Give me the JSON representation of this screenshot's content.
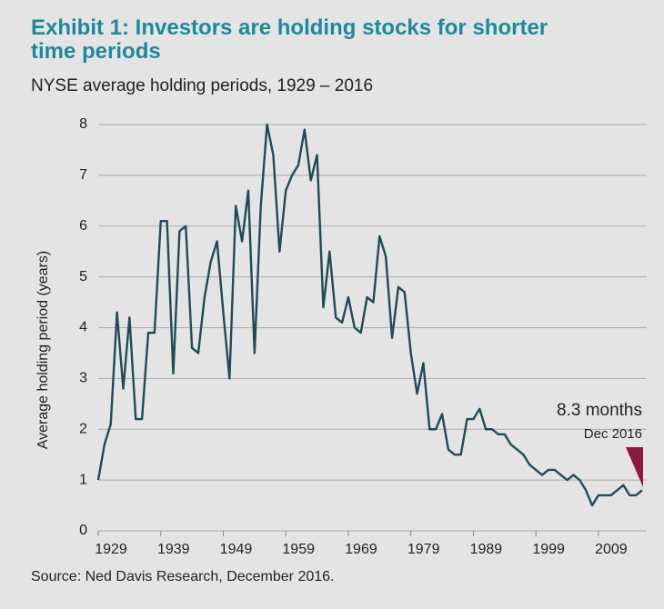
{
  "chart_data": {
    "type": "line",
    "title": "Exhibit 1: Investors are holding stocks for shorter time periods",
    "subtitle": "NYSE average holding periods, 1929 – 2016",
    "y_label": "Average holding period (years)",
    "source": "Source: Ned Davis Research, December 2016.",
    "annotation": "8.3 months",
    "annotation_date": "Dec 2016",
    "color": "#1f4b57",
    "x": [
      1929,
      1930,
      1931,
      1932,
      1933,
      1934,
      1935,
      1936,
      1937,
      1938,
      1939,
      1940,
      1941,
      1942,
      1943,
      1944,
      1945,
      1946,
      1947,
      1948,
      1949,
      1950,
      1951,
      1952,
      1953,
      1954,
      1955,
      1956,
      1957,
      1958,
      1959,
      1960,
      1961,
      1962,
      1963,
      1964,
      1965,
      1966,
      1967,
      1968,
      1969,
      1970,
      1971,
      1972,
      1973,
      1974,
      1975,
      1976,
      1977,
      1978,
      1979,
      1980,
      1981,
      1982,
      1983,
      1984,
      1985,
      1986,
      1987,
      1988,
      1989,
      1990,
      1991,
      1992,
      1993,
      1994,
      1995,
      1996,
      1997,
      1998,
      1999,
      2000,
      2001,
      2002,
      2003,
      2004,
      2005,
      2006,
      2007,
      2008,
      2009,
      2010,
      2011,
      2012,
      2013,
      2014,
      2015,
      2016
    ],
    "values": [
      1.0,
      1.7,
      2.1,
      4.3,
      2.8,
      4.2,
      2.2,
      2.2,
      3.9,
      3.9,
      6.1,
      6.1,
      3.1,
      5.9,
      6.0,
      3.6,
      3.5,
      4.6,
      5.3,
      5.7,
      4.3,
      3.0,
      6.4,
      5.7,
      6.7,
      3.5,
      6.4,
      8.0,
      7.4,
      5.5,
      6.7,
      7.0,
      7.2,
      7.9,
      6.9,
      7.4,
      4.4,
      5.5,
      4.2,
      4.1,
      4.6,
      4.0,
      3.9,
      4.6,
      4.5,
      5.8,
      5.4,
      3.8,
      4.8,
      4.7,
      3.5,
      2.7,
      3.3,
      2.0,
      2.0,
      2.3,
      1.6,
      1.5,
      1.5,
      2.2,
      2.2,
      2.4,
      2.0,
      2.0,
      1.9,
      1.9,
      1.7,
      1.6,
      1.5,
      1.3,
      1.2,
      1.1,
      1.2,
      1.2,
      1.1,
      1.0,
      1.1,
      1.0,
      0.8,
      0.5,
      0.7,
      0.7,
      0.7,
      0.8,
      0.9,
      0.7,
      0.7,
      0.8
    ],
    "xlim": [
      1929,
      2016
    ],
    "xticks": [
      1929,
      1939,
      1949,
      1959,
      1969,
      1979,
      1989,
      1999,
      2009
    ],
    "ylim": [
      0,
      8
    ],
    "yticks": [
      0,
      1,
      2,
      3,
      4,
      5,
      6,
      7,
      8
    ],
    "grid": true
  }
}
